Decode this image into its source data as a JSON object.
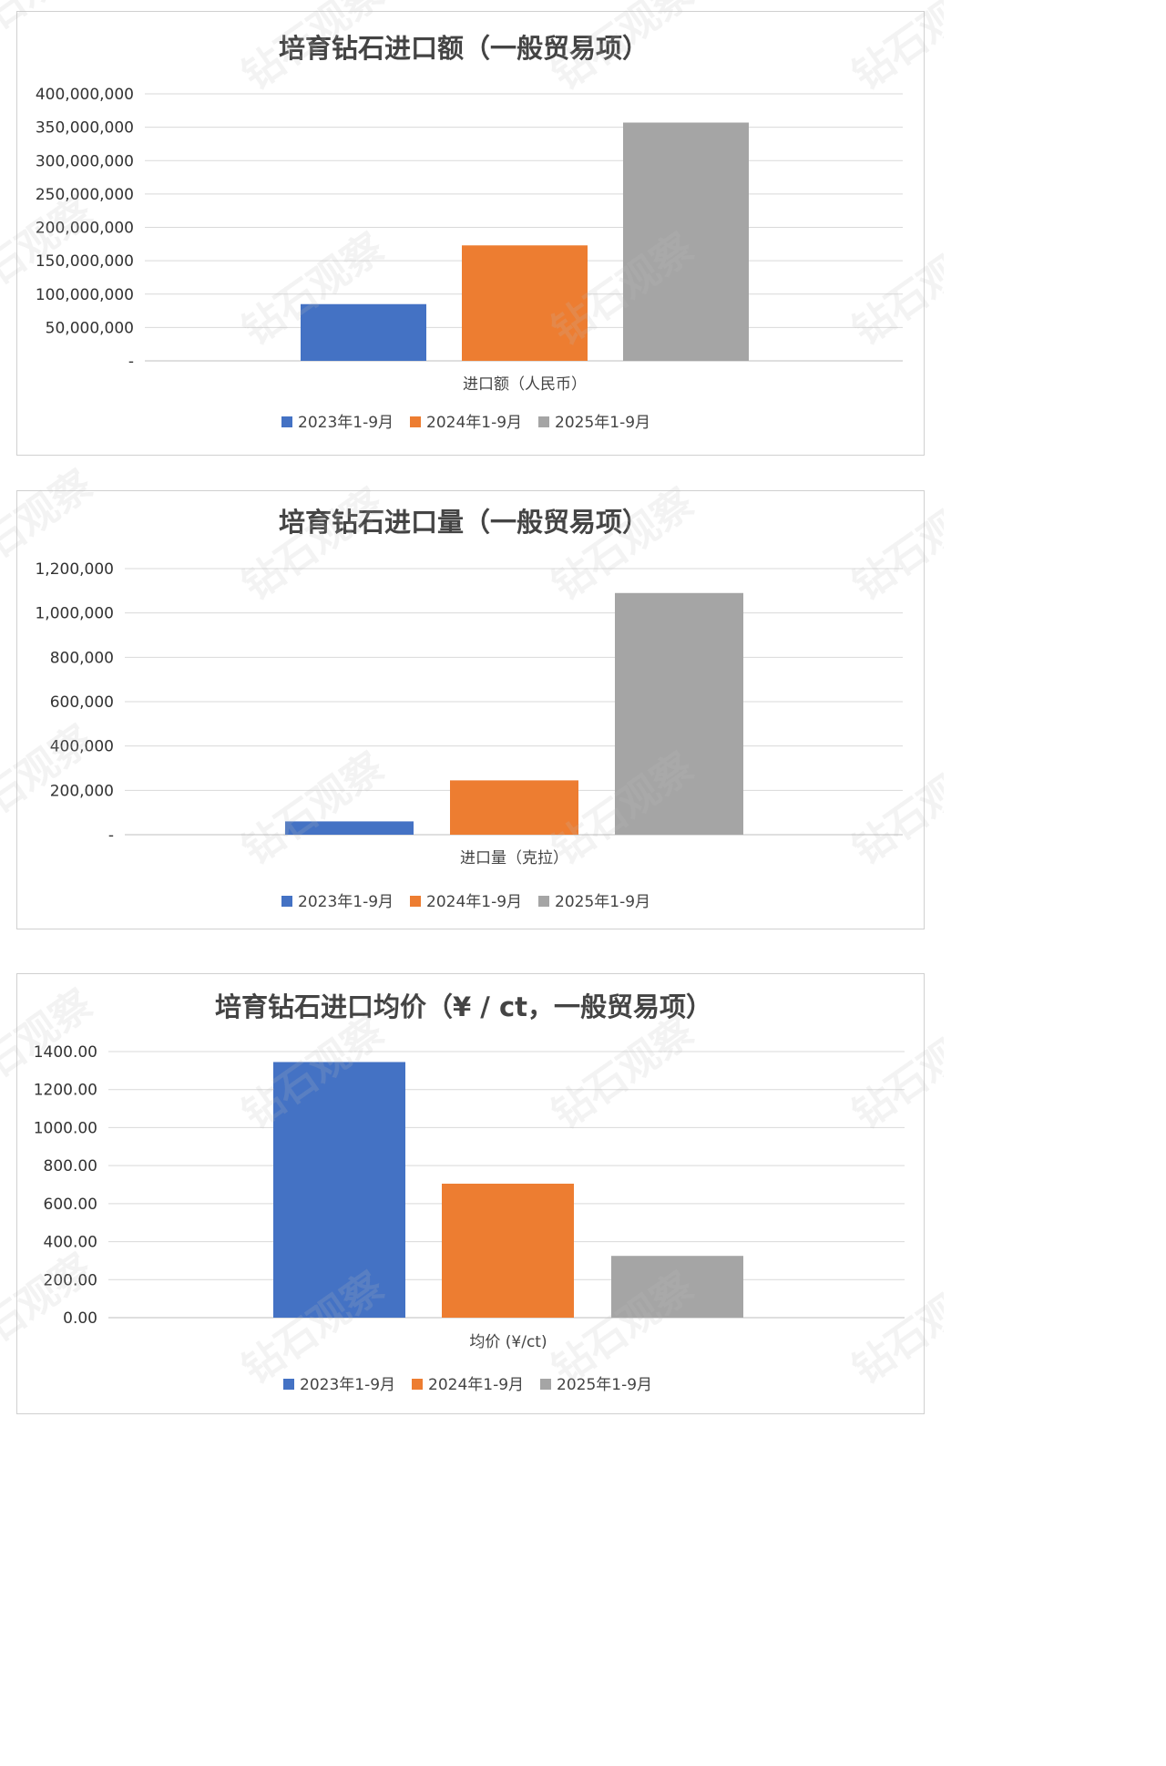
{
  "watermark_text": "钻石观察",
  "legend": [
    "2023年1-9月",
    "2024年1-9月",
    "2025年1-9月"
  ],
  "colors": {
    "s2023": "#4472C4",
    "s2024": "#ED7D31",
    "s2025": "#A5A5A5"
  },
  "chart_data": [
    {
      "type": "bar",
      "title": "培育钻石进口额（一般贸易项）",
      "categories": [
        "进口额（人民币）"
      ],
      "series": [
        {
          "name": "2023年1-9月",
          "values": [
            85000000
          ]
        },
        {
          "name": "2024年1-9月",
          "values": [
            173000000
          ]
        },
        {
          "name": "2025年1-9月",
          "values": [
            357000000
          ]
        }
      ],
      "ylim": [
        0,
        400000000
      ],
      "yticks": [
        "-",
        "50,000,000",
        "100,000,000",
        "150,000,000",
        "200,000,000",
        "250,000,000",
        "300,000,000",
        "350,000,000",
        "400,000,000"
      ],
      "grid": true,
      "legend_position": "bottom"
    },
    {
      "type": "bar",
      "title": "培育钻石进口量（一般贸易项）",
      "categories": [
        "进口量（克拉）"
      ],
      "series": [
        {
          "name": "2023年1-9月",
          "values": [
            60000
          ]
        },
        {
          "name": "2024年1-9月",
          "values": [
            245000
          ]
        },
        {
          "name": "2025年1-9月",
          "values": [
            1090000
          ]
        }
      ],
      "ylim": [
        0,
        1200000
      ],
      "yticks": [
        "-",
        "200,000",
        "400,000",
        "600,000",
        "800,000",
        "1,000,000",
        "1,200,000"
      ],
      "grid": true,
      "legend_position": "bottom"
    },
    {
      "type": "bar",
      "title": "培育钻石进口均价（¥ / ct，一般贸易项）",
      "categories": [
        "均价 (¥/ct)"
      ],
      "series": [
        {
          "name": "2023年1-9月",
          "values": [
            1345.0
          ]
        },
        {
          "name": "2024年1-9月",
          "values": [
            705.0
          ]
        },
        {
          "name": "2025年1-9月",
          "values": [
            325.0
          ]
        }
      ],
      "ylim": [
        0,
        1400
      ],
      "yticks": [
        "0.00",
        "200.00",
        "400.00",
        "600.00",
        "800.00",
        "1000.00",
        "1200.00",
        "1400.00"
      ],
      "grid": true,
      "legend_position": "bottom"
    }
  ]
}
